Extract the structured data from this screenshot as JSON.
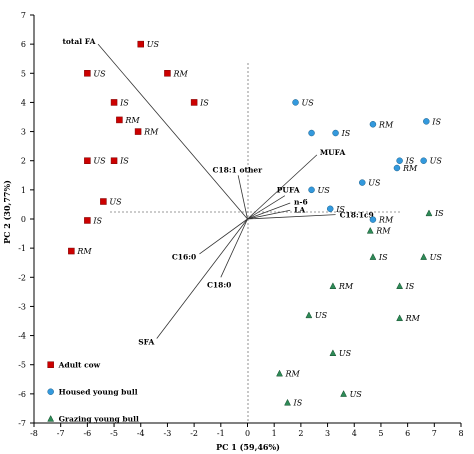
{
  "chart_data": {
    "type": "scatter",
    "title": "",
    "xlabel": "PC 1 (59,46%)",
    "ylabel": "PC 2 (30,77%)",
    "xlim": [
      -8,
      8
    ],
    "ylim": [
      -7,
      7
    ],
    "xticks": [
      "-8",
      "-7",
      "-6",
      "-5",
      "-4",
      "-3",
      "-2",
      "-1",
      "0",
      "1",
      "2",
      "3",
      "4",
      "5",
      "6",
      "7",
      "8"
    ],
    "yticks": [
      "-7",
      "-6",
      "-5",
      "-4",
      "-3",
      "-2",
      "-1",
      "0",
      "1",
      "2",
      "3",
      "4",
      "5",
      "6",
      "7"
    ],
    "legend_position": "bottom-left",
    "series": [
      {
        "name": "Adult cow",
        "marker": "square",
        "color": "#cc0000",
        "points": [
          {
            "x": -4.0,
            "y": 6.0,
            "label": "US"
          },
          {
            "x": -6.0,
            "y": 5.0,
            "label": "US"
          },
          {
            "x": -3.0,
            "y": 5.0,
            "label": "RM"
          },
          {
            "x": -5.0,
            "y": 4.0,
            "label": "IS"
          },
          {
            "x": -2.0,
            "y": 4.0,
            "label": "IS"
          },
          {
            "x": -4.8,
            "y": 3.4,
            "label": "RM"
          },
          {
            "x": -4.1,
            "y": 3.0,
            "label": "RM"
          },
          {
            "x": -6.0,
            "y": 2.0,
            "label": "US"
          },
          {
            "x": -5.0,
            "y": 2.0,
            "label": "IS"
          },
          {
            "x": -5.4,
            "y": 0.6,
            "label": "US"
          },
          {
            "x": -6.0,
            "y": -0.05,
            "label": "IS"
          },
          {
            "x": -6.6,
            "y": -1.1,
            "label": "RM"
          }
        ]
      },
      {
        "name": "Housed young bull",
        "marker": "circle",
        "color": "#3399dd",
        "points": [
          {
            "x": 1.8,
            "y": 4.0,
            "label": "US"
          },
          {
            "x": 2.4,
            "y": 2.95,
            "label": ""
          },
          {
            "x": 3.3,
            "y": 2.95,
            "label": "IS"
          },
          {
            "x": 4.7,
            "y": 3.25,
            "label": "RM"
          },
          {
            "x": 6.7,
            "y": 3.35,
            "label": "IS"
          },
          {
            "x": 5.7,
            "y": 2.0,
            "label": "IS"
          },
          {
            "x": 6.6,
            "y": 2.0,
            "label": "US"
          },
          {
            "x": 5.6,
            "y": 1.75,
            "label": "RM"
          },
          {
            "x": 4.3,
            "y": 1.25,
            "label": "US"
          },
          {
            "x": 2.4,
            "y": 1.0,
            "label": "US"
          },
          {
            "x": 3.1,
            "y": 0.35,
            "label": "IS"
          },
          {
            "x": 4.7,
            "y": -0.02,
            "label": "RM"
          }
        ]
      },
      {
        "name": "Grazing young bull",
        "marker": "triangle",
        "color": "#2e8b57",
        "points": [
          {
            "x": 6.8,
            "y": 0.2,
            "label": "IS"
          },
          {
            "x": 4.6,
            "y": -0.4,
            "label": "RM"
          },
          {
            "x": 4.7,
            "y": -1.3,
            "label": "IS"
          },
          {
            "x": 5.7,
            "y": -2.3,
            "label": "IS"
          },
          {
            "x": 6.6,
            "y": -1.3,
            "label": "US"
          },
          {
            "x": 3.2,
            "y": -2.3,
            "label": "RM"
          },
          {
            "x": 5.7,
            "y": -3.4,
            "label": "RM"
          },
          {
            "x": 2.3,
            "y": -3.3,
            "label": "US"
          },
          {
            "x": 3.2,
            "y": -4.6,
            "label": "US"
          },
          {
            "x": 1.2,
            "y": -5.3,
            "label": "RM"
          },
          {
            "x": 3.6,
            "y": -6.0,
            "label": "US"
          },
          {
            "x": 1.5,
            "y": -6.3,
            "label": "IS"
          }
        ]
      }
    ],
    "vectors": [
      {
        "label": "total FA",
        "x": -5.6,
        "y": 6.0
      },
      {
        "label": "SFA",
        "x": -3.4,
        "y": -4.1
      },
      {
        "label": "C16:0",
        "x": -1.8,
        "y": -1.2
      },
      {
        "label": "C18:0",
        "x": -1.0,
        "y": -2.0
      },
      {
        "label": "C18:1 other",
        "x": -0.35,
        "y": 1.5
      },
      {
        "label": "MUFA",
        "x": 2.6,
        "y": 2.2
      },
      {
        "label": "PUFA",
        "x": 1.4,
        "y": 0.8
      },
      {
        "label": "n-6",
        "x": 1.6,
        "y": 0.55
      },
      {
        "label": "LA",
        "x": 1.6,
        "y": 0.3
      },
      {
        "label": "C18:1c9",
        "x": 3.3,
        "y": 0.15
      }
    ]
  }
}
